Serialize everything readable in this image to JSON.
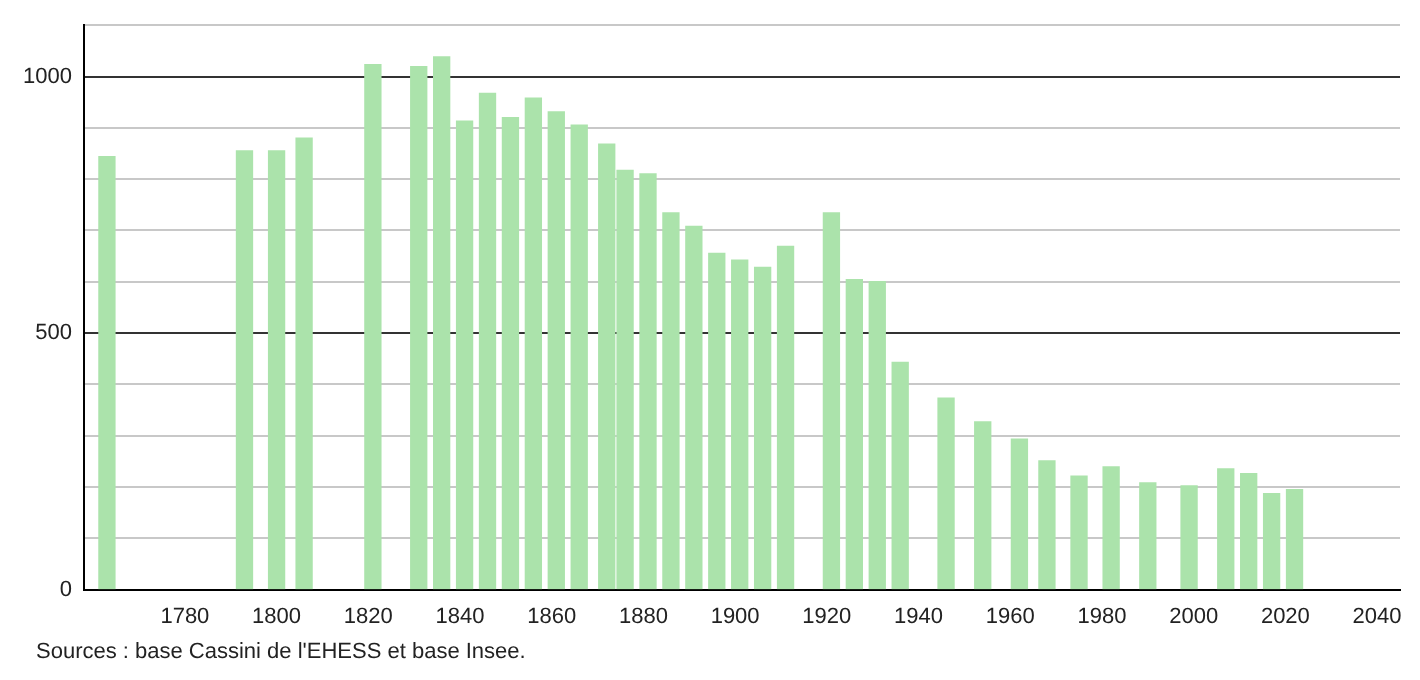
{
  "chart_data": {
    "type": "bar",
    "color": "#abe3ab",
    "x": [
      1763,
      1793,
      1800,
      1806,
      1821,
      1831,
      1836,
      1841,
      1846,
      1851,
      1856,
      1861,
      1866,
      1872,
      1876,
      1881,
      1886,
      1891,
      1896,
      1901,
      1906,
      1911,
      1921,
      1926,
      1931,
      1936,
      1946,
      1954,
      1962,
      1968,
      1975,
      1982,
      1990,
      1999,
      2007,
      2012,
      2017,
      2022
    ],
    "values": [
      844,
      855,
      855,
      880,
      1023,
      1019,
      1038,
      913,
      967,
      920,
      958,
      931,
      905,
      868,
      817,
      810,
      734,
      708,
      655,
      642,
      628,
      669,
      734,
      604,
      600,
      443,
      373,
      327,
      293,
      251,
      221,
      239,
      208,
      202,
      235,
      226,
      187,
      195
    ],
    "xlim": [
      1758,
      2045
    ],
    "xticks": [
      1780,
      1800,
      1820,
      1840,
      1860,
      1880,
      1900,
      1920,
      1940,
      1960,
      1980,
      2000,
      2020,
      2040
    ],
    "ylim": [
      0,
      1100
    ],
    "yticks": [
      0,
      {
        "value": 100,
        "label": null
      },
      {
        "value": 200,
        "label": null
      },
      {
        "value": 300,
        "label": null
      },
      {
        "value": 400,
        "label": null
      },
      500,
      {
        "value": 600,
        "label": null
      },
      {
        "value": 700,
        "label": null
      },
      {
        "value": 800,
        "label": null
      },
      {
        "value": 900,
        "label": null
      },
      1000,
      {
        "value": 1100,
        "label": null
      }
    ],
    "grid": "y",
    "annotations": [
      "Sources : base Cassini de l'EHESS et base Insee."
    ]
  }
}
